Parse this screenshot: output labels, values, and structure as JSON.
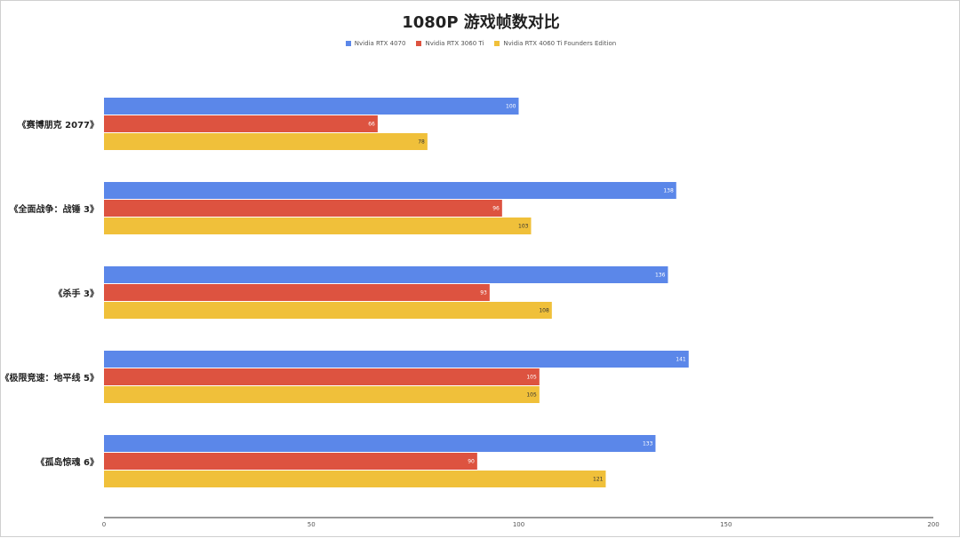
{
  "chart_data": {
    "type": "bar",
    "orientation": "horizontal",
    "title": "1080P 游戏帧数对比",
    "categories": [
      "《赛博朋克 2077》",
      "《全面战争：战锤 3》",
      "《杀手 3》",
      "《极限竞速：地平线 5》",
      "《孤岛惊魂 6》"
    ],
    "series": [
      {
        "name": "Nvidia RTX 4070",
        "color": "#5b87e9",
        "label_color": "#ffffff",
        "values": [
          100,
          138,
          136,
          141,
          133
        ]
      },
      {
        "name": "Nvidia RTX 3060 Ti",
        "color": "#dd5340",
        "label_color": "#ffffff",
        "values": [
          66,
          96,
          93,
          105,
          90
        ]
      },
      {
        "name": "Nvidia RTX 4060 Ti Founders Edition",
        "color": "#f0c03a",
        "label_color": "#333333",
        "values": [
          78,
          103,
          108,
          105,
          121
        ]
      }
    ],
    "xlim": [
      0,
      200
    ],
    "x_ticks": [
      "0",
      "50",
      "100",
      "150",
      "200"
    ],
    "legend_position": "top",
    "grid": false
  }
}
